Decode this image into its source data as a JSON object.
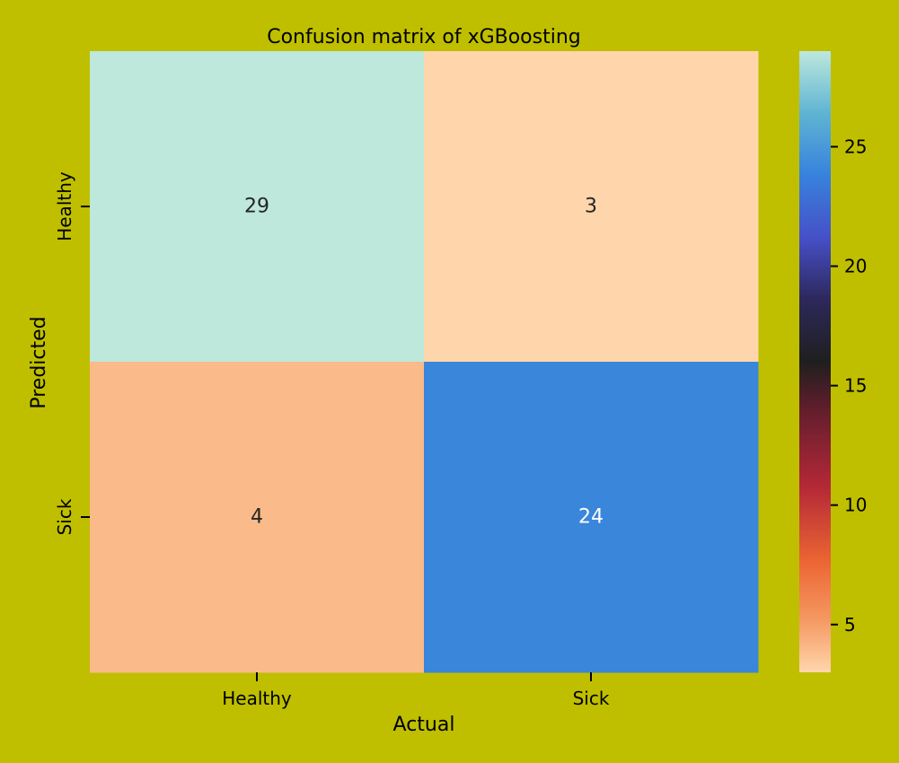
{
  "chart_data": {
    "type": "heatmap",
    "title": "Confusion matrix of xGBoosting",
    "xlabel": "Actual",
    "ylabel": "Predicted",
    "x_categories": [
      "Healthy",
      "Sick"
    ],
    "y_categories": [
      "Healthy",
      "Sick"
    ],
    "values": [
      [
        29,
        3
      ],
      [
        4,
        24
      ]
    ],
    "colorbar": {
      "range": [
        3,
        29
      ],
      "ticks": [
        5,
        10,
        15,
        20,
        25
      ],
      "colormap": "icefire_r"
    },
    "grid": false,
    "legend": "colorbar-right"
  },
  "colors": {
    "background": "#bfbf00",
    "text_dark": "#262626",
    "text_light": "#ffffff"
  }
}
